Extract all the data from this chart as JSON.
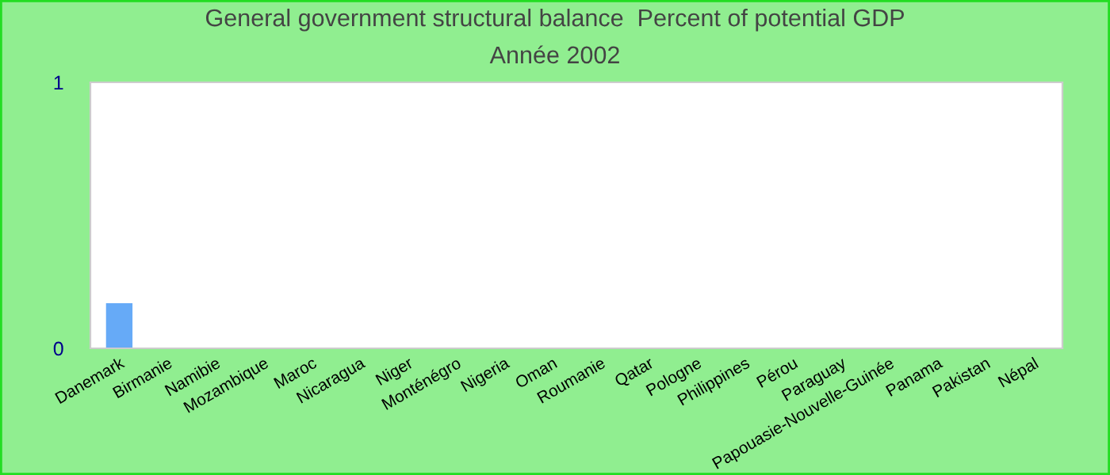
{
  "chart_data": {
    "type": "bar",
    "title": "General government structural balance  Percent of potential GDP",
    "subtitle": "Année 2002",
    "categories": [
      "Danemark",
      "Birmanie",
      "Namibie",
      "Mozambique",
      "Maroc",
      "Nicaragua",
      "Niger",
      "Monténégro",
      "Nigeria",
      "Oman",
      "Roumanie",
      "Qatar",
      "Pologne",
      "Philippines",
      "Pérou",
      "Paraguay",
      "Papouasie-Nouvelle-Guinée",
      "Panama",
      "Pakistan",
      "Népal"
    ],
    "values": [
      0.17,
      null,
      null,
      null,
      null,
      null,
      null,
      null,
      null,
      null,
      null,
      null,
      null,
      null,
      null,
      null,
      null,
      null,
      null,
      null
    ],
    "color": "#66aaf7",
    "ylim": [
      0,
      1
    ],
    "yticks": [
      0,
      1
    ],
    "grid": false
  }
}
